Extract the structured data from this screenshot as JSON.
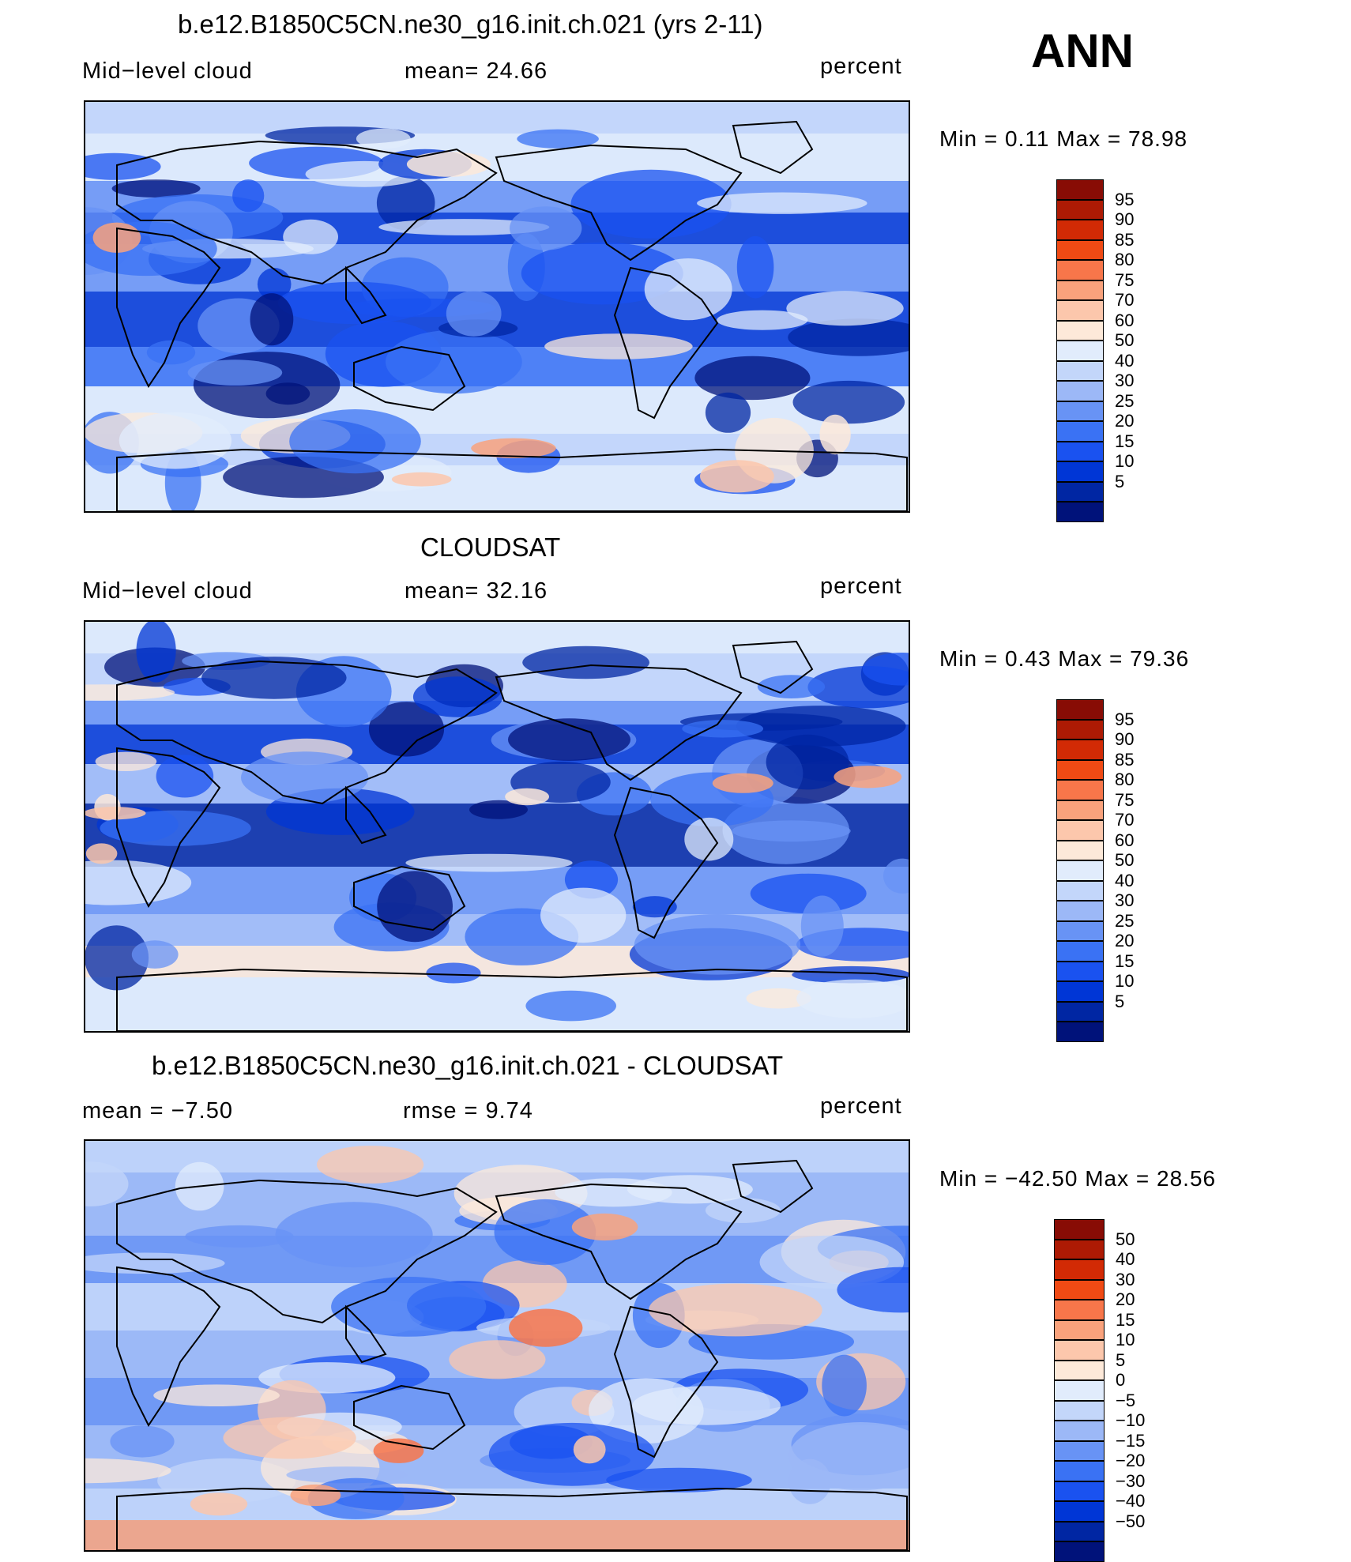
{
  "season_label": "ANN",
  "palette": {
    "p01": "#00127a",
    "p02": "#0026a3",
    "p03": "#0036d6",
    "p04": "#1a52f0",
    "p05": "#3a72f4",
    "p06": "#6893f5",
    "p07": "#9cb8f7",
    "p08": "#c3d6fa",
    "p09": "#e1ecfc",
    "p10": "#fde9d9",
    "p11": "#fcc7ac",
    "p12": "#f9a27c",
    "p13": "#f8764a",
    "p14": "#f04a14",
    "p15": "#d22a05",
    "p16": "#ad1a04",
    "p17": "#880c05"
  },
  "panels": [
    {
      "title": "b.e12.B1850C5CN.ne30_g16.init.ch.021 (yrs 2-11)",
      "left_label": "Mid−level cloud",
      "center_label": "mean=   24.66",
      "units": "percent",
      "minmax": "Min =    0.11  Max =   78.98",
      "levels": [
        "95",
        "90",
        "85",
        "80",
        "75",
        "70",
        "60",
        "50",
        "40",
        "30",
        "25",
        "20",
        "15",
        "10",
        "5"
      ],
      "field": {
        "type": "model",
        "mean": 24.66,
        "min": 0.11,
        "max": 78.98,
        "background_level": "p08"
      }
    },
    {
      "title": "CLOUDSAT",
      "left_label": "Mid−level cloud",
      "center_label": "mean=   32.16",
      "units": "percent",
      "minmax": "Min =    0.43  Max =   79.36",
      "levels": [
        "95",
        "90",
        "85",
        "80",
        "75",
        "70",
        "60",
        "50",
        "40",
        "30",
        "25",
        "20",
        "15",
        "10",
        "5"
      ],
      "field": {
        "type": "obs",
        "mean": 32.16,
        "min": 0.43,
        "max": 79.36,
        "background_level": "p08"
      }
    },
    {
      "title": "b.e12.B1850C5CN.ne30_g16.init.ch.021 - CLOUDSAT",
      "left_label": "mean  =   −7.50",
      "center_label": "rmse  =    9.74",
      "units": "percent",
      "minmax": "Min  = −42.50  Max  =   28.56",
      "levels": [
        "50",
        "40",
        "30",
        "20",
        "15",
        "10",
        "5",
        "0",
        "−5",
        "−10",
        "−15",
        "−20",
        "−30",
        "−40",
        "−50"
      ],
      "field": {
        "type": "diff",
        "mean": -7.5,
        "rmse": 9.74,
        "min": -42.5,
        "max": 28.56,
        "background_level": "p07"
      }
    }
  ]
}
